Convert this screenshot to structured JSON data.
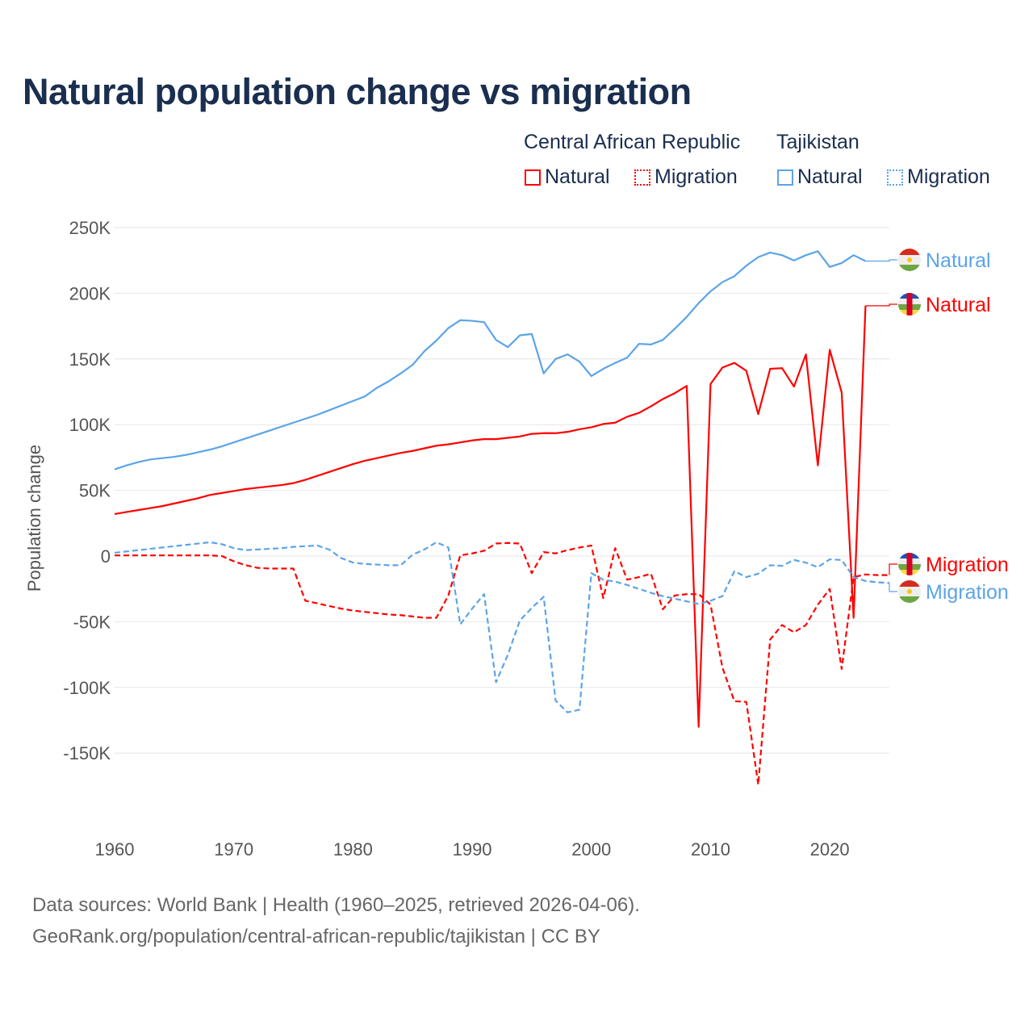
{
  "chart_data": {
    "type": "line",
    "title": "Natural population change vs migration",
    "ylabel": "Population change",
    "xlabel": "",
    "ylim": [
      -200000,
      250000
    ],
    "xlim": [
      1960,
      2025
    ],
    "yticks": [
      250000,
      200000,
      150000,
      100000,
      50000,
      0,
      -50000,
      -100000,
      -150000
    ],
    "ytick_labels": [
      "250K",
      "200K",
      "150K",
      "100K",
      "50K",
      "0",
      "-50K",
      "-100K",
      "-150K"
    ],
    "xticks": [
      1960,
      1970,
      1980,
      1990,
      2000,
      2010,
      2020
    ],
    "xtick_labels": [
      "1960",
      "1970",
      "1980",
      "1990",
      "2000",
      "2010",
      "2020"
    ],
    "grid": true,
    "legend": {
      "placement": "top-right",
      "groups": [
        {
          "name": "Central African Republic",
          "items": [
            "Natural",
            "Migration"
          ],
          "color": "#ff0000"
        },
        {
          "name": "Tajikistan",
          "items": [
            "Natural",
            "Migration"
          ],
          "color": "#5ba4e8"
        }
      ]
    },
    "start_year": 1960,
    "series": [
      {
        "name": "Tajikistan Natural",
        "country": "Tajikistan",
        "kind": "Natural",
        "color": "#5ba4e8",
        "dash": false,
        "end_label": "Natural",
        "values": [
          66000,
          69000,
          71500,
          73500,
          74500,
          75500,
          77000,
          79000,
          81000,
          83500,
          86500,
          89500,
          92500,
          95500,
          98500,
          101500,
          104500,
          107500,
          111000,
          114500,
          118000,
          121500,
          128000,
          133000,
          139000,
          145500,
          156000,
          164000,
          173500,
          179500,
          179000,
          178000,
          164500,
          159000,
          168000,
          169000,
          139000,
          150000,
          153500,
          148000,
          137000,
          142500,
          147000,
          151000,
          161500,
          161000,
          164500,
          173000,
          182000,
          192500,
          201500,
          208500,
          213000,
          221000,
          227500,
          231000,
          229000,
          225000,
          229000,
          232000,
          220000,
          223000,
          229000,
          224500
        ]
      },
      {
        "name": "Central African Republic Natural",
        "country": "Central African Republic",
        "kind": "Natural",
        "color": "#ff0000",
        "dash": false,
        "end_label": "Natural",
        "values": [
          32000,
          33500,
          35000,
          36500,
          38000,
          40000,
          42000,
          44000,
          46500,
          48000,
          49500,
          51000,
          52000,
          53000,
          54000,
          55500,
          58000,
          61000,
          64000,
          67000,
          70000,
          72500,
          74500,
          76500,
          78500,
          80000,
          82000,
          84000,
          85000,
          86500,
          88000,
          89000,
          89000,
          90000,
          91000,
          93000,
          93500,
          93500,
          94500,
          96500,
          98000,
          100500,
          101500,
          106000,
          109000,
          114000,
          119500,
          124000,
          129500,
          -130000,
          131000,
          143500,
          147000,
          141000,
          108000,
          142500,
          143000,
          129000,
          153500,
          69000,
          157000,
          124500,
          -47000,
          190500
        ]
      },
      {
        "name": "Central African Republic Migration",
        "country": "Central African Republic",
        "kind": "Migration",
        "color": "#ff0000",
        "dash": true,
        "end_label": "Migration",
        "values": [
          500,
          500,
          500,
          500,
          500,
          500,
          500,
          500,
          500,
          0,
          -4000,
          -7000,
          -9000,
          -9500,
          -9500,
          -9500,
          -34000,
          -36000,
          -38000,
          -40000,
          -41500,
          -42500,
          -43500,
          -44500,
          -45000,
          -46000,
          -47000,
          -47000,
          -30000,
          500,
          2000,
          4000,
          9500,
          10000,
          9500,
          -13000,
          3000,
          2000,
          4500,
          6500,
          8000,
          -32000,
          6000,
          -18000,
          -16000,
          -13500,
          -40500,
          -30000,
          -29000,
          -29000,
          -37000,
          -85000,
          -110500,
          -111000,
          -174000,
          -63500,
          -52500,
          -58000,
          -52500,
          -37000,
          -25000,
          -86000,
          -16000,
          -14000,
          -14500,
          -14500
        ]
      },
      {
        "name": "Tajikistan Migration",
        "country": "Tajikistan",
        "kind": "Migration",
        "color": "#5ba4e8",
        "dash": true,
        "end_label": "Migration",
        "values": [
          2500,
          3500,
          4500,
          5500,
          6500,
          7500,
          8500,
          9500,
          10500,
          9000,
          6000,
          4500,
          5000,
          5500,
          6000,
          7000,
          7500,
          8000,
          5000,
          -1500,
          -5000,
          -6000,
          -6500,
          -7000,
          -7000,
          1000,
          5000,
          10500,
          6500,
          -52000,
          -40000,
          -29000,
          -96000,
          -75000,
          -49000,
          -39500,
          -31000,
          -110000,
          -119000,
          -117000,
          -13000,
          -18000,
          -19500,
          -22000,
          -25000,
          -28000,
          -30500,
          -32500,
          -34500,
          -36500,
          -34000,
          -30500,
          -11500,
          -16000,
          -13500,
          -7000,
          -7500,
          -3000,
          -5000,
          -8500,
          -2500,
          -3000,
          -16000,
          -19000,
          -20000,
          -20500
        ]
      }
    ]
  },
  "legend": {
    "car": {
      "name": "Central African Republic",
      "natural": "Natural",
      "migration": "Migration"
    },
    "tjk": {
      "name": "Tajikistan",
      "natural": "Natural",
      "migration": "Migration"
    }
  },
  "end_labels": {
    "tjk_natural": "Natural",
    "car_natural": "Natural",
    "car_migration": "Migration",
    "tjk_migration": "Migration"
  },
  "source": {
    "line1": "Data sources: World Bank | Health (1960–2025, retrieved 2026-04-06).",
    "line2": "GeoRank.org/population/central-african-republic/tajikistan | CC BY"
  },
  "colors": {
    "car": "#ff0000",
    "tjk": "#5ba4e8",
    "title": "#1a2e4f"
  }
}
